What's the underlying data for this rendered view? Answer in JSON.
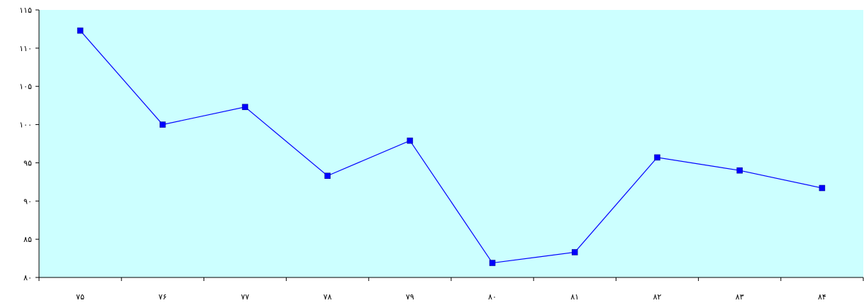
{
  "chart_data": {
    "type": "line",
    "title": "",
    "xlabel": "",
    "ylabel": "",
    "categories": [
      "۷۵",
      "۷۶",
      "۷۷",
      "۷۸",
      "۷۹",
      "۸۰",
      "۸۱",
      "۸۲",
      "۸۳",
      "۸۴"
    ],
    "series": [
      {
        "values": [
          112.3,
          100.0,
          102.3,
          93.3,
          97.9,
          81.9,
          83.3,
          95.7,
          94.0,
          91.7
        ]
      }
    ],
    "ylim": [
      80,
      115
    ],
    "yticks": [
      80,
      85,
      90,
      95,
      100,
      105,
      110,
      115
    ],
    "ytick_labels": [
      "۸۰",
      "۸۵",
      "۹۰",
      "۹۵",
      "۱۰۰",
      "۱۰۵",
      "۱۱۰",
      "۱۱۵"
    ],
    "grid": false,
    "legend": "none",
    "colors": {
      "plot_background": "#ccffff",
      "line": "#0000ff",
      "marker": "#0000ff",
      "axis": "#000000"
    }
  }
}
